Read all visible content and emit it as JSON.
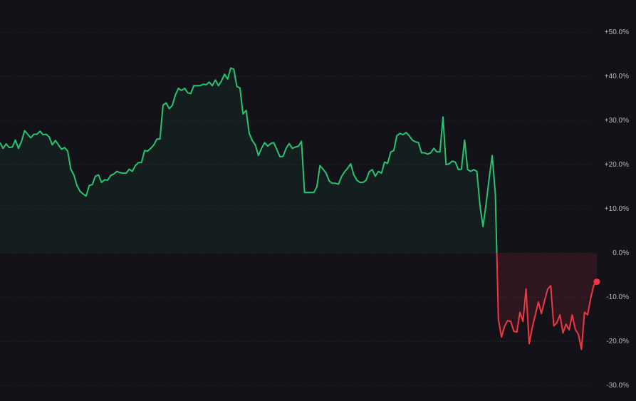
{
  "chart_data": {
    "type": "line",
    "color": "#26c46e",
    "negative_color": "#f23645",
    "values": [
      25.0,
      23.7,
      24.7,
      23.9,
      24.0,
      25.6,
      23.7,
      25.3,
      27.7,
      26.9,
      26.1,
      26.9,
      26.9,
      27.6,
      26.8,
      26.9,
      26.3,
      24.5,
      25.5,
      24.5,
      23.5,
      23.9,
      23.1,
      19.0,
      17.7,
      15.3,
      14.0,
      13.4,
      12.9,
      15.3,
      15.5,
      17.4,
      17.7,
      16.0,
      16.6,
      16.5,
      17.6,
      17.9,
      18.5,
      18.2,
      18.1,
      18.1,
      19.0,
      18.5,
      19.8,
      20.5,
      20.5,
      23.2,
      23.1,
      23.7,
      24.5,
      25.8,
      25.8,
      33.5,
      34.0,
      32.7,
      33.4,
      35.8,
      37.3,
      36.8,
      37.3,
      36.3,
      36.1,
      37.9,
      37.9,
      37.9,
      38.2,
      38.1,
      38.7,
      37.9,
      39.2,
      37.9,
      39.0,
      40.5,
      39.4,
      41.9,
      41.6,
      37.7,
      37.4,
      31.5,
      32.3,
      27.1,
      25.5,
      24.5,
      22.1,
      23.7,
      25.0,
      24.2,
      24.8,
      25.0,
      23.4,
      21.8,
      21.9,
      23.7,
      24.8,
      23.7,
      24.0,
      24.2,
      25.3,
      13.7,
      13.7,
      13.7,
      13.7,
      15.0,
      19.8,
      19.0,
      18.1,
      16.3,
      15.8,
      15.8,
      15.6,
      17.3,
      18.4,
      19.2,
      20.2,
      17.7,
      16.5,
      16.0,
      16.0,
      16.5,
      18.4,
      18.9,
      17.4,
      18.5,
      18.1,
      20.6,
      20.3,
      22.9,
      23.2,
      26.6,
      27.1,
      26.8,
      27.3,
      26.6,
      25.6,
      25.2,
      25.0,
      22.7,
      22.7,
      22.4,
      22.7,
      23.7,
      22.9,
      22.9,
      30.8,
      20.0,
      20.2,
      20.8,
      20.6,
      18.9,
      19.0,
      25.6,
      18.9,
      18.5,
      18.9,
      18.5,
      10.8,
      6.0,
      11.1,
      16.9,
      22.1,
      13.4,
      -15.0,
      -19.0,
      -16.6,
      -15.3,
      -15.5,
      -17.7,
      -17.9,
      -13.4,
      -15.5,
      -8.1,
      -20.5,
      -16.9,
      -14.0,
      -11.1,
      -13.7,
      -10.8,
      -8.2,
      -7.4,
      -16.5,
      -15.8,
      -14.0,
      -18.1,
      -16.1,
      -17.4,
      -14.0,
      -17.3,
      -18.4,
      -21.8,
      -13.4,
      -14.0,
      -10.2,
      -7.3,
      -6.5
    ],
    "ylim": [
      57.3,
      -33.5
    ],
    "yticks": [
      {
        "value": 50,
        "label": "+50.0%"
      },
      {
        "value": 40,
        "label": "+40.0%"
      },
      {
        "value": 30,
        "label": "+30.0%"
      },
      {
        "value": 20,
        "label": "+20.0%"
      },
      {
        "value": 10,
        "label": "+10.0%"
      },
      {
        "value": 0,
        "label": "0.0%"
      },
      {
        "value": -10,
        "label": "-10.0%"
      },
      {
        "value": -20,
        "label": "-20.0%"
      },
      {
        "value": -30,
        "label": "-30.0%"
      }
    ],
    "grid": true
  }
}
